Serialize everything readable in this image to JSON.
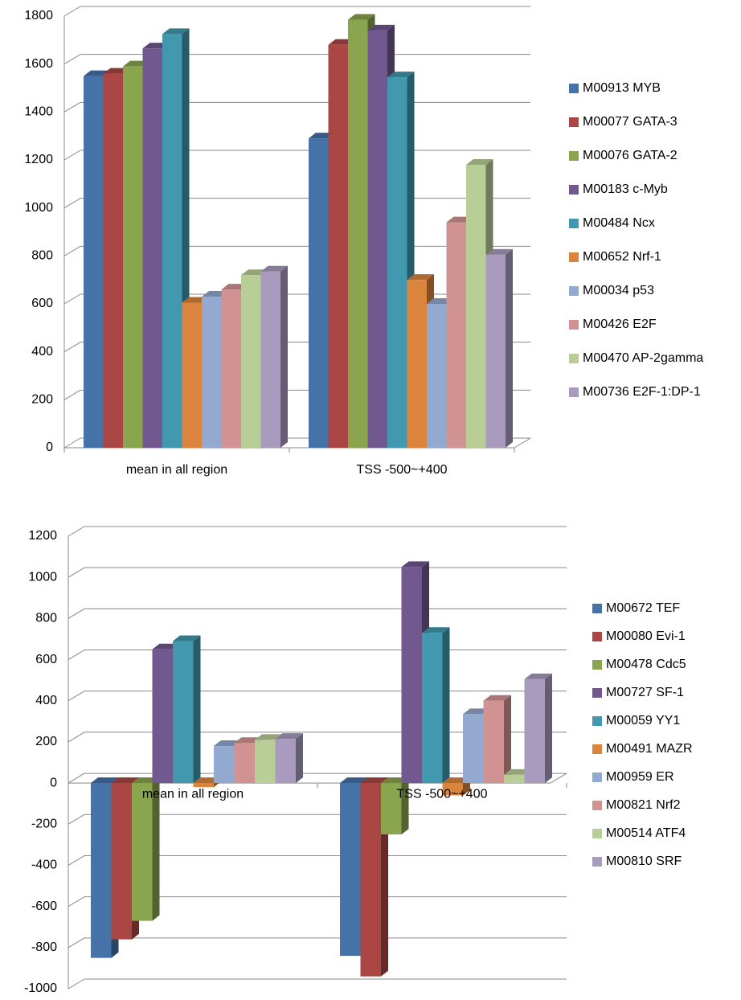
{
  "chart_data": [
    {
      "type": "bar",
      "categories": [
        "mean in all region",
        "TSS -500~+400"
      ],
      "series": [
        {
          "name": "M00913 MYB",
          "color": "#4572a7",
          "values": [
            1550,
            1290
          ]
        },
        {
          "name": "M00077 GATA-3",
          "color": "#aa4643",
          "values": [
            1560,
            1680
          ]
        },
        {
          "name": "M00076 GATA-2",
          "color": "#89a54e",
          "values": [
            1590,
            1785
          ]
        },
        {
          "name": "M00183 c-Myb",
          "color": "#71588f",
          "values": [
            1665,
            1740
          ]
        },
        {
          "name": "M00484 Ncx",
          "color": "#4198af",
          "values": [
            1725,
            1545
          ]
        },
        {
          "name": "M00652 Nrf-1",
          "color": "#db843d",
          "values": [
            605,
            700
          ]
        },
        {
          "name": "M00034 p53",
          "color": "#93a9cf",
          "values": [
            630,
            600
          ]
        },
        {
          "name": "M00426 E2F",
          "color": "#d19392",
          "values": [
            660,
            940
          ]
        },
        {
          "name": "M00470 AP-2gamma",
          "color": "#b9cd96",
          "values": [
            720,
            1180
          ]
        },
        {
          "name": "M00736 E2F-1:DP-1",
          "color": "#a99bbd",
          "values": [
            735,
            805
          ]
        }
      ],
      "ylim": [
        0,
        1800
      ],
      "yticks": [
        0,
        200,
        400,
        600,
        800,
        1000,
        1200,
        1400,
        1600,
        1800
      ],
      "grid": true
    },
    {
      "type": "bar",
      "categories": [
        "mean in all region",
        "TSS -500~+400"
      ],
      "series": [
        {
          "name": "M00672 TEF",
          "color": "#4572a7",
          "values": [
            -850,
            -840
          ]
        },
        {
          "name": "M00080 Evi-1",
          "color": "#aa4643",
          "values": [
            -760,
            -940
          ]
        },
        {
          "name": "M00478 Cdc5",
          "color": "#89a54e",
          "values": [
            -670,
            -250
          ]
        },
        {
          "name": "M00727 SF-1",
          "color": "#71588f",
          "values": [
            650,
            1050
          ]
        },
        {
          "name": "M00059 YY1",
          "color": "#4198af",
          "values": [
            690,
            730
          ]
        },
        {
          "name": "M00491 MAZR",
          "color": "#db843d",
          "values": [
            -20,
            -60
          ]
        },
        {
          "name": "M00959 ER",
          "color": "#93a9cf",
          "values": [
            180,
            335
          ]
        },
        {
          "name": "M00821 Nrf2",
          "color": "#d19392",
          "values": [
            195,
            400
          ]
        },
        {
          "name": "M00514 ATF4",
          "color": "#b9cd96",
          "values": [
            210,
            40
          ]
        },
        {
          "name": "M00810 SRF",
          "color": "#a99bbd",
          "values": [
            215,
            505
          ]
        }
      ],
      "ylim": [
        -1000,
        1200
      ],
      "yticks": [
        -1000,
        -800,
        -600,
        -400,
        -200,
        0,
        200,
        400,
        600,
        800,
        1000,
        1200
      ],
      "grid": true
    }
  ]
}
